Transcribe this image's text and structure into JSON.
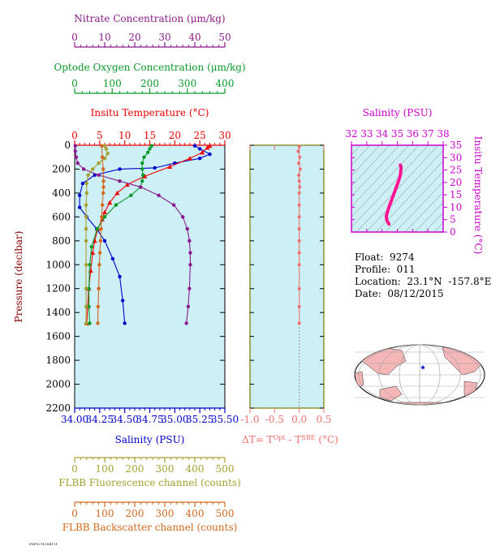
{
  "colors": {
    "nitrate": "#8b1a8b",
    "oxygen": "#0a9a2a",
    "temperature": "#ee0000",
    "salinity": "#0000cc",
    "fluorescence": "#a6a030",
    "backscatter": "#d2691e",
    "deltaT": "#f07070",
    "ts_axis": "#cc00cc",
    "ts_curve": "#ff1493",
    "panel_bg": "#cdeff6",
    "frame": "#7a7a00"
  },
  "main_panel": {
    "pressure_label": "Pressure (decibar)",
    "pressure_ticks": [
      "0",
      "200",
      "400",
      "600",
      "800",
      "1000",
      "1200",
      "1400",
      "1600",
      "1800",
      "2000",
      "2200"
    ],
    "salinity_label": "Salinity (PSU)",
    "salinity_ticks": [
      "34.00",
      "34.25",
      "34.50",
      "34.75",
      "35.00",
      "35.25",
      "35.50"
    ],
    "temperature_label": "Insitu Temperature (°C)",
    "temperature_ticks": [
      "0",
      "5",
      "10",
      "15",
      "20",
      "25",
      "30"
    ],
    "oxygen_label": "Optode Oxygen Concentration (μm/kg)",
    "oxygen_ticks": [
      "0",
      "100",
      "200",
      "300",
      "400"
    ],
    "nitrate_label": "Nitrate Concentration (μm/kg)",
    "nitrate_ticks": [
      "0",
      "10",
      "20",
      "30",
      "40",
      "50"
    ],
    "fluorescence_label": "FLBB Fluorescence channel (counts)",
    "fluorescence_ticks": [
      "0",
      "100",
      "200",
      "300",
      "400",
      "500"
    ],
    "backscatter_label": "FLBB Backscatter channel (counts)",
    "backscatter_ticks": [
      "0",
      "100",
      "200",
      "300",
      "400",
      "500"
    ]
  },
  "delta_panel": {
    "label_prefix": "ΔT= T",
    "label_sup1": "Opt",
    "label_mid": " - T",
    "label_sup2": "SBE",
    "label_suffix": " (°C)",
    "ticks": [
      "-1.0",
      "-0.5",
      "0.0",
      "0.5"
    ]
  },
  "ts_panel": {
    "salinity_label": "Salinity (PSU)",
    "salinity_ticks": [
      "32",
      "33",
      "34",
      "35",
      "36",
      "37",
      "38"
    ],
    "temperature_label": "Insitu Temperature (°C)",
    "temperature_ticks": [
      "0",
      "5",
      "10",
      "15",
      "20",
      "25",
      "30",
      "35"
    ]
  },
  "float_info": {
    "float": "Float:  9274",
    "profile": "Profile:  011",
    "location": "Location:  23.1°N  -157.8°E",
    "date": "Date:  08/12/2015"
  },
  "footer_note": "PDF9274 ISR111",
  "chart_data": [
    {
      "type": "line",
      "name": "profile",
      "ylim": [
        0,
        2200
      ],
      "series": [
        {
          "name": "Salinity (PSU)",
          "xlim": [
            34.0,
            35.5
          ],
          "x": [
            35.2,
            35.25,
            35.35,
            35.25,
            35.0,
            34.8,
            34.45,
            34.2,
            34.08,
            34.05,
            34.05,
            34.12,
            34.22,
            34.3,
            34.38,
            34.45,
            34.48,
            34.5
          ],
          "y": [
            5,
            30,
            75,
            110,
            150,
            190,
            200,
            250,
            320,
            420,
            520,
            600,
            700,
            800,
            950,
            1100,
            1300,
            1490
          ]
        },
        {
          "name": "Insitu Temperature (°C)",
          "xlim": [
            0,
            30
          ],
          "x": [
            27.0,
            26.5,
            25.5,
            23.0,
            19.0,
            14.0,
            10.5,
            8.5,
            7.0,
            6.0,
            5.5,
            4.6,
            4.0,
            3.6,
            3.2,
            2.8,
            2.6,
            2.4
          ],
          "y": [
            5,
            20,
            60,
            110,
            180,
            260,
            330,
            400,
            480,
            560,
            620,
            700,
            800,
            900,
            1050,
            1200,
            1350,
            1490
          ]
        },
        {
          "name": "Optode Oxygen Concentration (μm/kg)",
          "xlim": [
            0,
            400
          ],
          "x": [
            205,
            200,
            195,
            185,
            180,
            180,
            182,
            180,
            175,
            150,
            110,
            80,
            60,
            45,
            40,
            38,
            38,
            40
          ],
          "y": [
            5,
            30,
            60,
            100,
            150,
            200,
            250,
            300,
            350,
            420,
            500,
            600,
            700,
            850,
            1000,
            1200,
            1350,
            1490
          ]
        },
        {
          "name": "Nitrate Concentration (μm/kg)",
          "xlim": [
            0,
            50
          ],
          "x": [
            0.2,
            0.2,
            0.5,
            1.0,
            3.0,
            8.0,
            15.0,
            22.0,
            28.0,
            33.0,
            36.0,
            37.5,
            38.2,
            38.5,
            38.5,
            38.2,
            37.8,
            37.2
          ],
          "y": [
            5,
            50,
            100,
            150,
            200,
            250,
            300,
            350,
            420,
            500,
            600,
            700,
            800,
            900,
            1000,
            1200,
            1350,
            1490
          ]
        },
        {
          "name": "FLBB Fluorescence channel (counts)",
          "xlim": [
            0,
            500
          ],
          "x": [
            100,
            105,
            110,
            100,
            80,
            60,
            45,
            40,
            40,
            38,
            38,
            38,
            38,
            38,
            38,
            38,
            38
          ],
          "y": [
            5,
            30,
            70,
            110,
            150,
            200,
            250,
            320,
            400,
            500,
            600,
            700,
            800,
            1000,
            1200,
            1350,
            1490
          ]
        },
        {
          "name": "FLBB Backscatter channel (counts)",
          "xlim": [
            0,
            500
          ],
          "x": [
            90,
            92,
            95,
            96,
            96,
            95,
            92,
            90,
            88,
            86,
            84,
            82,
            80,
            78,
            77
          ],
          "y": [
            5,
            100,
            200,
            300,
            350,
            400,
            500,
            600,
            700,
            800,
            900,
            1000,
            1200,
            1350,
            1490
          ]
        }
      ]
    },
    {
      "type": "line",
      "name": "deltaT",
      "xlim": [
        -1.0,
        0.5
      ],
      "ylim": [
        0,
        2200
      ],
      "series": [
        {
          "name": "ΔT",
          "x": [
            0.0,
            -0.02,
            0.01,
            -0.01,
            0.02,
            -0.01,
            0.0,
            0.01,
            0.0,
            0.0,
            0.0,
            0.0,
            0.0,
            0.0,
            0.0,
            0.0,
            0.0,
            0.0
          ],
          "y": [
            10,
            50,
            100,
            150,
            200,
            250,
            300,
            350,
            400,
            500,
            600,
            700,
            800,
            900,
            1000,
            1200,
            1350,
            1490
          ]
        }
      ]
    },
    {
      "type": "line",
      "name": "TS diagram",
      "xlim": [
        32,
        38
      ],
      "ylim": [
        0,
        35
      ],
      "series": [
        {
          "name": "T-S",
          "x": [
            35.2,
            35.25,
            35.2,
            35.05,
            34.9,
            34.75,
            34.6,
            34.45,
            34.35,
            34.28,
            34.3,
            34.38,
            34.45
          ],
          "y": [
            27.0,
            26.0,
            23.0,
            20.0,
            17.5,
            15.0,
            12.5,
            10.0,
            8.0,
            6.5,
            5.0,
            4.0,
            3.2
          ]
        }
      ]
    }
  ]
}
